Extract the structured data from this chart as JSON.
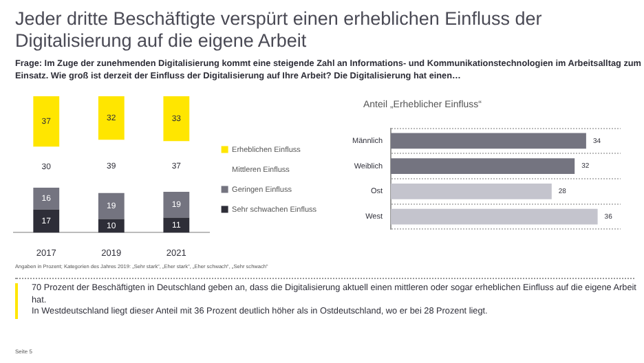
{
  "chart_data": [
    {
      "type": "bar",
      "title": "Jeder dritte Beschäftigte verspürt einen erheblichen Einfluss der Digitalisierung auf die eigene Arbeit",
      "subtitle": "Frage: Im Zuge der zunehmenden Digitalisierung kommt eine steigende Zahl an Informations- und Kommunikationstechnologien im Arbeitsalltag zum Einsatz. Wie groß ist derzeit der Einfluss der Digitalisierung auf Ihre Arbeit? Die Digitalisierung hat einen…",
      "categories": [
        "2017",
        "2019",
        "2021"
      ],
      "stacked": true,
      "data_labels": true,
      "legend": "right",
      "tick_labels": "x",
      "series": [
        {
          "name": "Sehr schwachen Einfluss",
          "color": "#2e2e38",
          "values": [
            17,
            10,
            11
          ]
        },
        {
          "name": "Geringen Einfluss",
          "color": "#747480",
          "values": [
            16,
            19,
            19
          ]
        },
        {
          "name": "Mittleren Einfluss",
          "color": "#ffffff",
          "values": [
            30,
            39,
            37
          ]
        },
        {
          "name": "Erheblichen Einfluss",
          "color": "#ffe600",
          "values": [
            37,
            32,
            33
          ]
        }
      ],
      "annotations": [
        "Angaben in Prozent; Kategorien des Jahres 2019: „Sehr stark“, „Eher stark“, „Eher schwach“, „Sehr schwach“",
        "70 Prozent der Beschäftigten in Deutschland geben an, dass die Digitalisierung aktuell einen mittleren oder sogar erheblichen Einfluss auf die eigene Arbeit hat.",
        "In Westdeutschland liegt dieser Anteil mit 36 Prozent deutlich höher als in Ostdeutschland, wo er bei 28 Prozent liegt.",
        "Seite 5"
      ]
    },
    {
      "type": "bar",
      "orientation": "horizontal",
      "title": "Anteil „Erheblicher Einfluss“",
      "categories": [
        "Männlich",
        "Weiblich",
        "Ost",
        "West"
      ],
      "values": [
        34,
        32,
        28,
        36
      ],
      "colors": [
        "#747480",
        "#747480",
        "#c4c4cd",
        "#c4c4cd"
      ],
      "data_labels": true,
      "grid": "y",
      "tick_labels": "y"
    }
  ]
}
